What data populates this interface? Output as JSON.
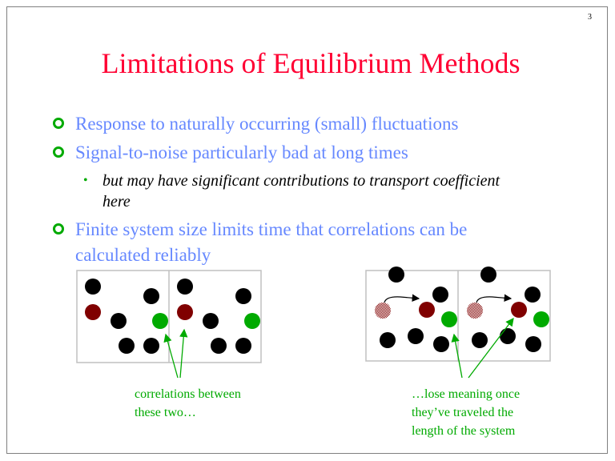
{
  "page_number": "3",
  "title": "Limitations of Equilibrium Methods",
  "bullets": [
    {
      "lines": [
        "Response to naturally occurring (small) fluctuations"
      ]
    },
    {
      "lines": [
        "Signal-to-noise particularly bad at long times"
      ]
    },
    {
      "lines": [
        "Finite system size limits time that correlations can be",
        "calculated reliably"
      ]
    }
  ],
  "sub_bullet": {
    "lines": [
      "but may have significant contributions to transport coefficient",
      "here"
    ]
  },
  "captions": {
    "left": [
      "correlations between",
      "these two…"
    ],
    "right": [
      "…lose meaning once",
      "they’ve traveled the",
      "length of the system"
    ]
  },
  "colors": {
    "title": "#ff0033",
    "bullet_text": "#6688ff",
    "accent_green": "#00aa00",
    "particle_black": "#000000",
    "particle_red": "#800000",
    "particle_green": "#00aa00"
  }
}
